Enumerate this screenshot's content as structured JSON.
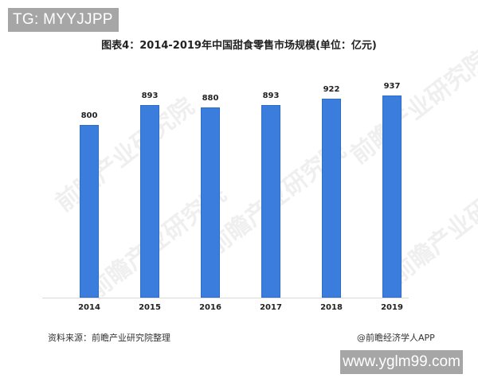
{
  "overlay": {
    "tg_badge": "TG: MYYJJPP",
    "url_badge": "www.yglm99.com"
  },
  "watermark_text": "前瞻产业研究院",
  "chart_data": {
    "type": "bar",
    "title": "图表4：2014-2019年中国甜食零售市场规模(单位：亿元)",
    "xlabel": "",
    "ylabel": "",
    "categories": [
      "2014",
      "2015",
      "2016",
      "2017",
      "2018",
      "2019"
    ],
    "values": [
      800,
      893,
      880,
      893,
      922,
      937
    ],
    "data_labels": [
      "800",
      "893",
      "880",
      "893",
      "922",
      "937"
    ],
    "series": [
      {
        "name": "甜食零售市场规模(亿元)",
        "values": [
          800,
          893,
          880,
          893,
          922,
          937
        ],
        "color": "#3a7ddc"
      }
    ],
    "ylim": [
      0,
      1000
    ],
    "grid": false,
    "legend": null
  },
  "footer": {
    "source": "资料来源：前瞻产业研究院整理",
    "credit": "@前瞻经济学人APP"
  }
}
